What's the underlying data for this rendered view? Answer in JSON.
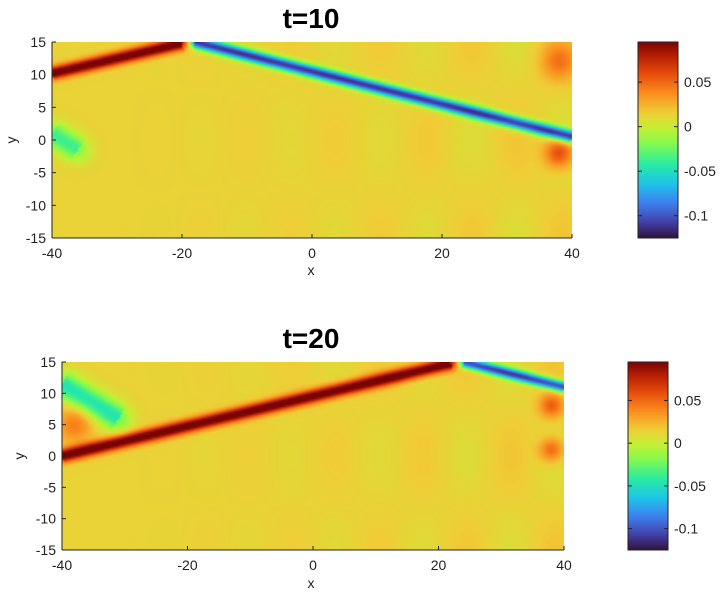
{
  "chart_data": [
    {
      "type": "heatmap",
      "title": "t=10",
      "xlabel": "x",
      "ylabel": "y",
      "xlim": [
        -40,
        40
      ],
      "ylim": [
        -15,
        15
      ],
      "xticks": [
        -40,
        -20,
        0,
        20,
        40
      ],
      "yticks": [
        -15,
        -10,
        -5,
        0,
        5,
        10,
        15
      ],
      "grid": false,
      "colormap": "turbo",
      "colorbar": {
        "clim": [
          -0.125,
          0.095
        ],
        "ticks": [
          0.05,
          0,
          -0.05,
          -0.1
        ],
        "tick_labels": [
          "0.05",
          "0",
          "-0.05",
          "-0.1"
        ]
      },
      "background_value": 0.013,
      "features": [
        {
          "kind": "positive-ridge",
          "from": [
            -40,
            10.2
          ],
          "to": [
            -20,
            14.8
          ],
          "amplitude": 0.095,
          "width": 0.7
        },
        {
          "kind": "negative-ridge",
          "from": [
            -18,
            15
          ],
          "to": [
            40,
            0.5
          ],
          "amplitude": -0.125,
          "width": 0.65
        },
        {
          "kind": "negative-patch",
          "from": [
            -40,
            1.0
          ],
          "to": [
            -36,
            -1.5
          ],
          "amplitude": -0.05,
          "width": 1.4
        },
        {
          "kind": "positive-blob",
          "center": [
            38,
            -2
          ],
          "amplitude": 0.05,
          "radius": 1.6
        },
        {
          "kind": "positive-blob",
          "center": [
            38,
            12
          ],
          "amplitude": 0.03,
          "radius": 2.0
        }
      ]
    },
    {
      "type": "heatmap",
      "title": "t=20",
      "xlabel": "x",
      "ylabel": "y",
      "xlim": [
        -40,
        40
      ],
      "ylim": [
        -15,
        15
      ],
      "xticks": [
        -40,
        -20,
        0,
        20,
        40
      ],
      "yticks": [
        -15,
        -10,
        -5,
        0,
        5,
        10,
        15
      ],
      "grid": false,
      "colormap": "turbo",
      "colorbar": {
        "clim": [
          -0.125,
          0.095
        ],
        "ticks": [
          0.05,
          0,
          -0.05,
          -0.1
        ],
        "tick_labels": [
          "0.05",
          "0",
          "-0.05",
          "-0.1"
        ]
      },
      "background_value": 0.013,
      "features": [
        {
          "kind": "positive-ridge",
          "from": [
            -40,
            0
          ],
          "to": [
            22,
            14.8
          ],
          "amplitude": 0.095,
          "width": 0.75
        },
        {
          "kind": "negative-ridge",
          "from": [
            24,
            15
          ],
          "to": [
            40,
            11
          ],
          "amplitude": -0.12,
          "width": 0.6
        },
        {
          "kind": "negative-patch",
          "from": [
            -40,
            11.5
          ],
          "to": [
            -31,
            6
          ],
          "amplitude": -0.06,
          "width": 1.5
        },
        {
          "kind": "positive-blob",
          "center": [
            -38,
            5
          ],
          "amplitude": 0.03,
          "radius": 2.0
        },
        {
          "kind": "positive-blob",
          "center": [
            38,
            1
          ],
          "amplitude": 0.04,
          "radius": 1.4
        },
        {
          "kind": "positive-blob",
          "center": [
            38,
            8
          ],
          "amplitude": 0.04,
          "radius": 1.4
        }
      ]
    }
  ]
}
